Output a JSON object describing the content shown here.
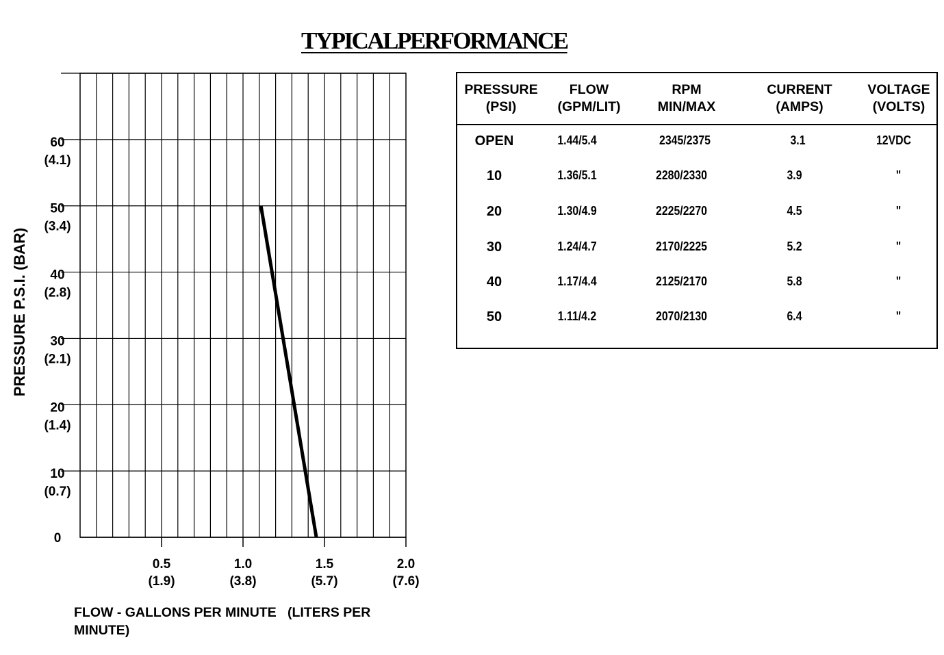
{
  "title": "TYPICALPERFORMANCE",
  "chart_data": {
    "type": "line",
    "xlabel": "FLOW - GALLONS PER MINUTE   (LITERS PER MINUTE)",
    "ylabel": "PRESSURE  P.S.I.   (BAR)",
    "xlim": [
      0,
      2.0
    ],
    "ylim": [
      0,
      70
    ],
    "x_ticks": [
      {
        "value": 0.5,
        "label": "0.5",
        "sub": "(1.9)"
      },
      {
        "value": 1.0,
        "label": "1.0",
        "sub": "(3.8)"
      },
      {
        "value": 1.5,
        "label": "1.5",
        "sub": "(5.7)"
      },
      {
        "value": 2.0,
        "label": "2.0",
        "sub": "(7.6)"
      }
    ],
    "y_ticks": [
      {
        "value": 0,
        "label": "0",
        "sub": ""
      },
      {
        "value": 10,
        "label": "10",
        "sub": "(0.7)"
      },
      {
        "value": 20,
        "label": "20",
        "sub": "(1.4)"
      },
      {
        "value": 30,
        "label": "30",
        "sub": "(2.1)"
      },
      {
        "value": 40,
        "label": "40",
        "sub": "(2.8)"
      },
      {
        "value": 50,
        "label": "50",
        "sub": "(3.4)"
      },
      {
        "value": 60,
        "label": "60",
        "sub": "(4.1)"
      }
    ],
    "grid": true,
    "x_grid_step": 0.1,
    "y_grid_step": 10,
    "series": [
      {
        "x": [
          1.11,
          1.45
        ],
        "y": [
          50,
          0
        ]
      }
    ]
  },
  "table": {
    "headers": [
      "PRESSURE\n(PSI)",
      "FLOW\n(GPM/LIT)",
      "RPM\nMIN/MAX",
      "CURRENT\n(AMPS)",
      "VOLTAGE\n(VOLTS)"
    ],
    "rows": [
      [
        "OPEN",
        "1.44/5.4",
        "2345/2375",
        "3.1",
        "12VDC"
      ],
      [
        "10",
        "1.36/5.1",
        "2280/2330",
        "3.9",
        "\""
      ],
      [
        "20",
        "1.30/4.9",
        "2225/2270",
        "4.5",
        "\""
      ],
      [
        "30",
        "1.24/4.7",
        "2170/2225",
        "5.2",
        "\""
      ],
      [
        "40",
        "1.17/4.4",
        "2125/2170",
        "5.8",
        "\""
      ],
      [
        "50",
        "1.11/4.2",
        "2070/2130",
        "6.4",
        "\""
      ]
    ]
  }
}
